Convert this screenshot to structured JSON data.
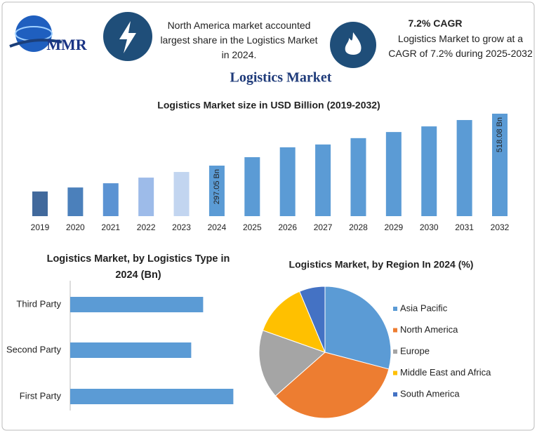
{
  "header": {
    "logo_text": "MMR",
    "highlight_text": "North America market accounted largest share in the Logistics Market in 2024.",
    "cagr_title": "7.2% CAGR",
    "cagr_text": "Logistics Market to grow at a CAGR of 7.2% during 2025-2032"
  },
  "title": "Logistics Market",
  "chart_data": [
    {
      "type": "bar",
      "title": "Logistics Market size in USD Billion (2019-2032)",
      "categories": [
        "2019",
        "2020",
        "2021",
        "2022",
        "2023",
        "2024",
        "2025",
        "2026",
        "2027",
        "2028",
        "2029",
        "2030",
        "2031",
        "2032"
      ],
      "values": [
        187,
        204,
        222,
        246,
        270,
        297.05,
        333,
        375,
        387,
        414,
        440,
        464,
        491,
        518.08
      ],
      "value_labels": [
        null,
        null,
        null,
        null,
        null,
        "297.05 Bn",
        null,
        null,
        null,
        null,
        null,
        null,
        null,
        "518.08 Bn"
      ],
      "colors": [
        "#41699c",
        "#4b80bb",
        "#5b93d3",
        "#9dbbe9",
        "#c2d5f0",
        "#5b9bd5",
        "#5b9bd5",
        "#5b9bd5",
        "#5b9bd5",
        "#5b9bd5",
        "#5b9bd5",
        "#5b9bd5",
        "#5b9bd5",
        "#5b9bd5"
      ],
      "ylim": [
        82,
        530
      ]
    },
    {
      "type": "hbar",
      "title": "Logistics Market, by Logistics Type in 2024 (Bn)",
      "categories": [
        "Third Party",
        "Second Party",
        "First Party"
      ],
      "values": [
        94.7,
        86.2,
        116.2
      ],
      "color": "#5b9bd5",
      "xlim": [
        0,
        125
      ]
    },
    {
      "type": "pie",
      "title": "Logistics Market, by Region In 2024 (%)",
      "series": [
        {
          "name": "Asia Pacific",
          "color": "#5b9bd5",
          "value": 29.1
        },
        {
          "name": "North America",
          "color": "#ed7d31",
          "value": 34.4
        },
        {
          "name": "Europe",
          "color": "#a5a5a5",
          "value": 16.9
        },
        {
          "name": "Middle East and Africa",
          "color": "#ffc000",
          "value": 13.3
        },
        {
          "name": "South America",
          "color": "#4472c4",
          "value": 6.3
        }
      ],
      "legend": "right"
    }
  ]
}
